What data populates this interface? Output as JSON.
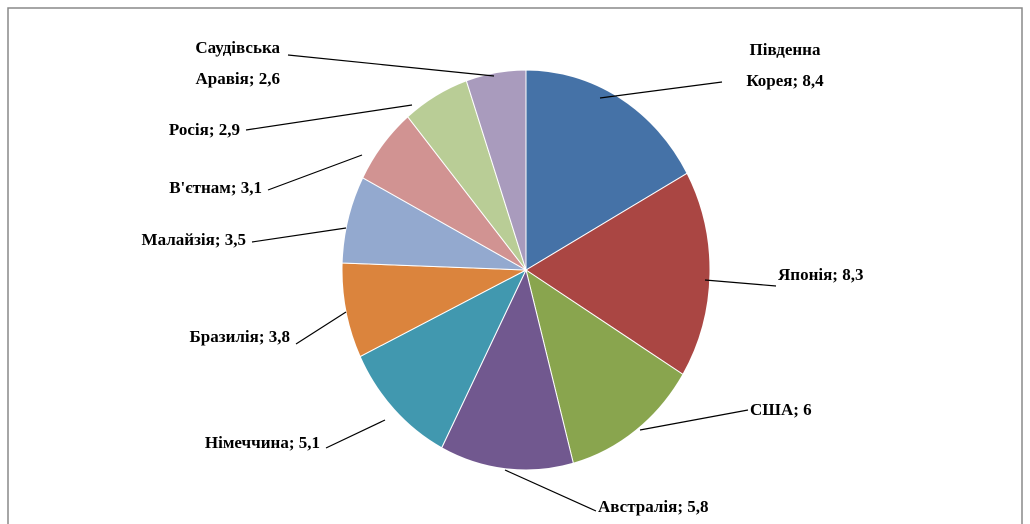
{
  "chart_data": {
    "type": "pie",
    "categories": [
      "Південна Корея",
      "Японія",
      "США",
      "Австралія",
      "Німеччина",
      "Бразилія",
      "Малайзія",
      "В'єтнам",
      "Росія",
      "Саудівська Аравія"
    ],
    "values": [
      8.4,
      8.3,
      6,
      5.8,
      5.1,
      3.8,
      3.5,
      3.1,
      2.9,
      2.6
    ],
    "value_labels": [
      "8,4",
      "8,3",
      "6",
      "5,8",
      "5,1",
      "3,8",
      "3,5",
      "3,1",
      "2,9",
      "2,6"
    ],
    "label_separator": "; ",
    "colors": [
      "#4572A7",
      "#AA4643",
      "#89A54E",
      "#71588F",
      "#4198AF",
      "#DB843D",
      "#93A9CF",
      "#D19392",
      "#B9CD96",
      "#A99BBD"
    ]
  }
}
